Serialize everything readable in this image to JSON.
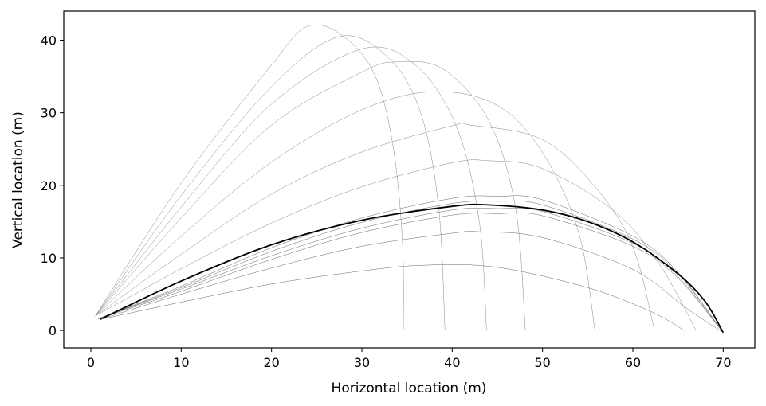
{
  "chart_data": {
    "type": "line",
    "title": "",
    "xlabel": "Horizontal location (m)",
    "ylabel": "Vertical location (m)",
    "xlim": [
      -3,
      73.5
    ],
    "ylim": [
      -2.4,
      44
    ],
    "xticks": [
      0,
      10,
      20,
      30,
      40,
      50,
      60,
      70
    ],
    "yticks": [
      0,
      10,
      20,
      30,
      40
    ],
    "grid": false,
    "legend": "none",
    "series": [
      {
        "label_color": "#888888",
        "width": 0.5,
        "points": [
          [
            0.5,
            2
          ],
          [
            10,
            20.3
          ],
          [
            20,
            36.6
          ],
          [
            24,
            41.9
          ],
          [
            28,
            40.5
          ],
          [
            31.5,
            35
          ],
          [
            33.5,
            25
          ],
          [
            34.5,
            12
          ],
          [
            34.6,
            0
          ]
        ]
      },
      {
        "label_color": "#888888",
        "width": 0.5,
        "points": [
          [
            0.5,
            2
          ],
          [
            10,
            18.6
          ],
          [
            20,
            33.6
          ],
          [
            27.5,
            40.5
          ],
          [
            33,
            37.5
          ],
          [
            36.5,
            30
          ],
          [
            38.5,
            17
          ],
          [
            39.2,
            0
          ]
        ]
      },
      {
        "label_color": "#888888",
        "width": 0.5,
        "points": [
          [
            0.5,
            2
          ],
          [
            10,
            17
          ],
          [
            20,
            31.2
          ],
          [
            30,
            38.8
          ],
          [
            36,
            36.5
          ],
          [
            40.5,
            28
          ],
          [
            43,
            15
          ],
          [
            43.8,
            0
          ]
        ]
      },
      {
        "label_color": "#888888",
        "width": 0.5,
        "points": [
          [
            0.5,
            2
          ],
          [
            10,
            15.5
          ],
          [
            20,
            28.3
          ],
          [
            30,
            35.6
          ],
          [
            34,
            37
          ],
          [
            39,
            36
          ],
          [
            44,
            29
          ],
          [
            47,
            17
          ],
          [
            48.1,
            0
          ]
        ]
      },
      {
        "label_color": "#888888",
        "width": 0.5,
        "points": [
          [
            0.5,
            2
          ],
          [
            10,
            13
          ],
          [
            20,
            23.2
          ],
          [
            30,
            30.4
          ],
          [
            38,
            32.9
          ],
          [
            45,
            31
          ],
          [
            50,
            24.5
          ],
          [
            54,
            13.5
          ],
          [
            55.8,
            0
          ]
        ]
      },
      {
        "label_color": "#888888",
        "width": 0.5,
        "points": [
          [
            0.5,
            2
          ],
          [
            10,
            10.5
          ],
          [
            20,
            18.8
          ],
          [
            30,
            24.6
          ],
          [
            40,
            28.2
          ],
          [
            42,
            28.3
          ],
          [
            50,
            26.3
          ],
          [
            56,
            19.5
          ],
          [
            60,
            11.5
          ],
          [
            62.4,
            0
          ]
        ]
      },
      {
        "label_color": "#888888",
        "width": 0.5,
        "points": [
          [
            0.5,
            2
          ],
          [
            10,
            8.5
          ],
          [
            20,
            14.8
          ],
          [
            30,
            19.8
          ],
          [
            40,
            23.1
          ],
          [
            44,
            23.4
          ],
          [
            50,
            22.3
          ],
          [
            58,
            16.4
          ],
          [
            63,
            9
          ],
          [
            67,
            0
          ]
        ]
      },
      {
        "label_color": "#666666",
        "width": 0.5,
        "points": [
          [
            0.8,
            1.6
          ],
          [
            10,
            6.1
          ],
          [
            20,
            11.4
          ],
          [
            30,
            15.5
          ],
          [
            40,
            18.2
          ],
          [
            45,
            18.5
          ],
          [
            50,
            18
          ],
          [
            60,
            13
          ],
          [
            65,
            8
          ],
          [
            70,
            -0.3
          ]
        ]
      },
      {
        "label_color": "#666666",
        "width": 0.5,
        "points": [
          [
            0.8,
            1.6
          ],
          [
            10,
            5.9
          ],
          [
            20,
            10.9
          ],
          [
            30,
            14.9
          ],
          [
            40,
            17.5
          ],
          [
            45,
            17.8
          ],
          [
            50,
            17.3
          ],
          [
            60,
            12.6
          ],
          [
            65,
            7.8
          ],
          [
            70,
            -0.3
          ]
        ]
      },
      {
        "label_color": "#666666",
        "width": 0.5,
        "points": [
          [
            0.8,
            1.6
          ],
          [
            10,
            5.7
          ],
          [
            20,
            10.3
          ],
          [
            30,
            14.1
          ],
          [
            40,
            16.6
          ],
          [
            45,
            16.8
          ],
          [
            50,
            16.4
          ],
          [
            60,
            12
          ],
          [
            65,
            7.4
          ],
          [
            70,
            -0.3
          ]
        ]
      },
      {
        "label_color": "#666666",
        "width": 0.5,
        "points": [
          [
            0.8,
            1.6
          ],
          [
            10,
            5.4
          ],
          [
            20,
            9.8
          ],
          [
            30,
            13.5
          ],
          [
            40,
            15.9
          ],
          [
            45,
            16.1
          ],
          [
            50,
            15.8
          ],
          [
            60,
            11.6
          ],
          [
            65,
            7.2
          ],
          [
            70,
            -0.3
          ]
        ]
      },
      {
        "label_color": "#000000",
        "width": 1.8,
        "points": [
          [
            1,
            1.5
          ],
          [
            10,
            6.8
          ],
          [
            20,
            11.8
          ],
          [
            30,
            15.2
          ],
          [
            40,
            17.1
          ],
          [
            44,
            17.3
          ],
          [
            50,
            16.6
          ],
          [
            55,
            15
          ],
          [
            60,
            12.2
          ],
          [
            65,
            7.8
          ],
          [
            68,
            4
          ],
          [
            70,
            -0.3
          ]
        ]
      },
      {
        "label_color": "#666666",
        "width": 0.5,
        "points": [
          [
            1,
            1.5
          ],
          [
            10,
            5
          ],
          [
            20,
            8.6
          ],
          [
            30,
            11.6
          ],
          [
            40,
            13.4
          ],
          [
            43,
            13.6
          ],
          [
            50,
            12.8
          ],
          [
            60,
            8.4
          ],
          [
            66,
            3
          ],
          [
            70,
            -0.3
          ]
        ]
      },
      {
        "label_color": "#666666",
        "width": 0.5,
        "points": [
          [
            1,
            1.5
          ],
          [
            10,
            3.9
          ],
          [
            20,
            6.4
          ],
          [
            30,
            8.2
          ],
          [
            37,
            9
          ],
          [
            45,
            8.7
          ],
          [
            55,
            5.9
          ],
          [
            62,
            2.6
          ],
          [
            65.7,
            0
          ]
        ]
      }
    ]
  }
}
